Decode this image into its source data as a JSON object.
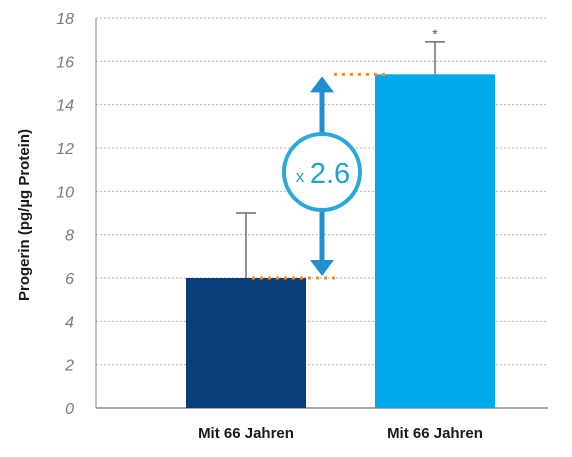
{
  "chart_data": {
    "type": "bar",
    "categories": [
      "Mit 66 Jahren",
      "Mit 66 Jahren"
    ],
    "values": [
      6.0,
      15.4
    ],
    "error_upper": [
      9.0,
      16.9
    ],
    "significance": [
      "",
      "*"
    ],
    "ylabel": "Progerin (pg/µg Protein)",
    "xlabel": "",
    "ylim": [
      0,
      18
    ],
    "yticks": [
      "0",
      "2",
      "4",
      "6",
      "8",
      "10",
      "12",
      "14",
      "16",
      "18"
    ],
    "grid": true,
    "annotation": {
      "prefix": "x",
      "value": "2.6"
    },
    "colors": {
      "bars": [
        "#0a3e7a",
        "#00aaea"
      ],
      "arrow": "#1f8fd0",
      "dotted_marker": "#f08c32",
      "error_bar": "#6f6f6f",
      "grid": "#b5b5b5",
      "tick_text": "#7a7a7a"
    }
  }
}
